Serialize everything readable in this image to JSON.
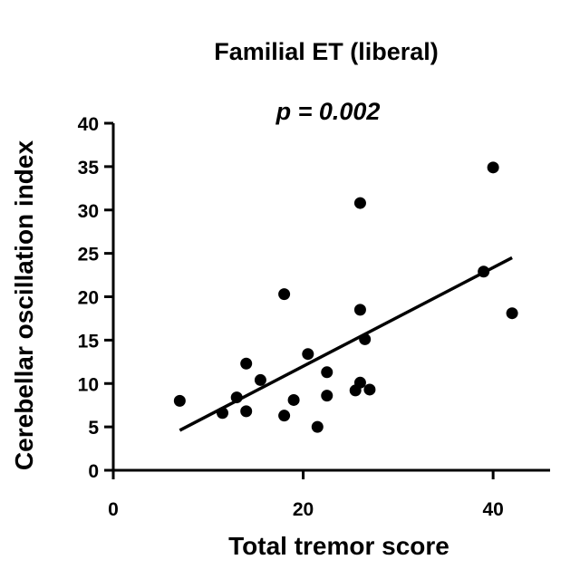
{
  "chart_data": {
    "type": "scatter",
    "title": "Familial ET (liberal)",
    "annotation": "p = 0.002",
    "xlabel": "Total tremor score",
    "ylabel": "Cerebellar oscillation index",
    "xlim": [
      0,
      46
    ],
    "ylim": [
      0,
      40
    ],
    "xticks": [
      "0",
      "20",
      "40"
    ],
    "yticks": [
      "0",
      "5",
      "10",
      "15",
      "20",
      "25",
      "30",
      "35",
      "40"
    ],
    "grid": false,
    "legend": "none",
    "series": [
      {
        "points": [
          {
            "x": 7,
            "y": 8.0
          },
          {
            "x": 11.5,
            "y": 6.6
          },
          {
            "x": 13,
            "y": 8.4
          },
          {
            "x": 14,
            "y": 6.8
          },
          {
            "x": 14,
            "y": 12.3
          },
          {
            "x": 15.5,
            "y": 10.4
          },
          {
            "x": 18,
            "y": 6.3
          },
          {
            "x": 18,
            "y": 20.3
          },
          {
            "x": 19,
            "y": 8.1
          },
          {
            "x": 20.5,
            "y": 13.4
          },
          {
            "x": 21.5,
            "y": 5.0
          },
          {
            "x": 22.5,
            "y": 8.6
          },
          {
            "x": 22.5,
            "y": 11.3
          },
          {
            "x": 25.5,
            "y": 9.2
          },
          {
            "x": 26,
            "y": 10.1
          },
          {
            "x": 26,
            "y": 18.5
          },
          {
            "x": 26,
            "y": 30.8
          },
          {
            "x": 26.5,
            "y": 15.1
          },
          {
            "x": 27,
            "y": 9.3
          },
          {
            "x": 39,
            "y": 22.9
          },
          {
            "x": 40,
            "y": 34.9
          },
          {
            "x": 42,
            "y": 18.1
          }
        ]
      }
    ],
    "trendline": {
      "x1": 7,
      "y1": 4.6,
      "x2": 42,
      "y2": 24.5
    }
  }
}
